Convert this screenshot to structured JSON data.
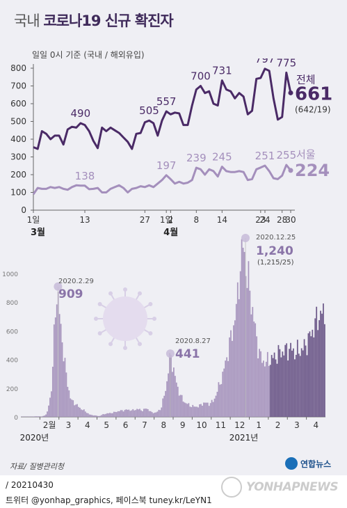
{
  "header": {
    "title_pre": "국내",
    "title_main": "코로나19 신규 확진자"
  },
  "top_chart_note": "일일 0시 기준 (국내 / 해외유입)",
  "source": "자료/ 질병관리청",
  "logo": {
    "text": "연합뉴스"
  },
  "footer": {
    "date": "/ 20210430",
    "social": "트위터 @yonhap_graphics, 페이스북 tuney.kr/LeYN1"
  },
  "watermark": "YONHAPNEWS",
  "colors": {
    "total": "#4a2a66",
    "seoul": "#a48fbc",
    "bar": "#a896be",
    "bar_recent": "#6e5a8a",
    "bg": "#efeff4"
  },
  "chart_data": [
    {
      "type": "line",
      "title": "",
      "ylim": [
        0,
        800
      ],
      "yticks": [
        0,
        100,
        200,
        300,
        400,
        500,
        600,
        700,
        800
      ],
      "x": [
        1,
        2,
        3,
        4,
        5,
        6,
        7,
        8,
        9,
        10,
        11,
        12,
        13,
        14,
        15,
        16,
        17,
        18,
        19,
        20,
        21,
        22,
        23,
        24,
        25,
        26,
        27,
        28,
        29,
        30,
        31,
        32,
        33,
        34,
        35,
        36,
        37,
        38,
        39,
        40,
        41,
        42,
        43,
        44,
        45,
        46,
        47,
        48,
        49,
        50,
        51,
        52,
        53,
        54,
        55,
        56,
        57,
        58,
        59,
        60,
        61
      ],
      "xtick_labels": [
        {
          "x": 1,
          "label": "1일"
        },
        {
          "x": 13,
          "label": "13"
        },
        {
          "x": 27,
          "label": "27"
        },
        {
          "x": 32,
          "label": "1일"
        },
        {
          "x": 33,
          "label": "2"
        },
        {
          "x": 39,
          "label": "8"
        },
        {
          "x": 45,
          "label": "14"
        },
        {
          "x": 54,
          "label": "23"
        },
        {
          "x": 55,
          "label": "24"
        },
        {
          "x": 59,
          "label": "28"
        },
        {
          "x": 61,
          "label": "30"
        }
      ],
      "month_labels": [
        {
          "x": 1,
          "label": "3월"
        },
        {
          "x": 32,
          "label": "4월"
        }
      ],
      "series": [
        {
          "name": "전체",
          "values": [
            355,
            345,
            445,
            430,
            400,
            420,
            420,
            370,
            455,
            470,
            465,
            490,
            480,
            445,
            390,
            350,
            465,
            445,
            465,
            450,
            435,
            410,
            385,
            345,
            430,
            435,
            495,
            505,
            490,
            420,
            505,
            557,
            540,
            550,
            545,
            480,
            480,
            590,
            680,
            700,
            660,
            670,
            600,
            590,
            731,
            680,
            670,
            630,
            660,
            640,
            540,
            560,
            740,
            745,
            797,
            785,
            630,
            510,
            525,
            775,
            661
          ],
          "labels": [
            {
              "x": 12,
              "text": "490"
            },
            {
              "x": 28,
              "text": "505"
            },
            {
              "x": 32,
              "text": "557"
            },
            {
              "x": 40,
              "text": "700"
            },
            {
              "x": 45,
              "text": "731"
            },
            {
              "x": 55,
              "text": "797"
            },
            {
              "x": 60,
              "text": "775"
            }
          ],
          "end_value": "661",
          "end_detail": "(642/19)"
        },
        {
          "name": "서울",
          "values": [
            90,
            125,
            120,
            120,
            130,
            125,
            130,
            120,
            115,
            130,
            140,
            138,
            138,
            118,
            120,
            125,
            100,
            100,
            120,
            130,
            140,
            125,
            100,
            120,
            125,
            135,
            130,
            140,
            130,
            150,
            170,
            197,
            175,
            150,
            160,
            150,
            155,
            170,
            239,
            230,
            200,
            230,
            220,
            190,
            245,
            220,
            215,
            215,
            220,
            215,
            170,
            175,
            230,
            240,
            251,
            220,
            180,
            175,
            195,
            255,
            224
          ],
          "labels": [
            {
              "x": 13,
              "text": "138"
            },
            {
              "x": 32,
              "text": "197"
            },
            {
              "x": 39,
              "text": "239"
            },
            {
              "x": 45,
              "text": "245"
            },
            {
              "x": 55,
              "text": "251"
            },
            {
              "x": 60,
              "text": "255"
            }
          ],
          "end_value": "224"
        }
      ]
    },
    {
      "type": "bar",
      "ylim": [
        0,
        1000
      ],
      "yticks": [
        0,
        200,
        400,
        600,
        800,
        1000
      ],
      "month_labels": [
        "2월",
        "3",
        "4",
        "5",
        "6",
        "7",
        "8",
        "9",
        "10",
        "11",
        "12",
        "1",
        "2",
        "3",
        "4"
      ],
      "year_labels": [
        {
          "month_index": 0,
          "text": "2020년"
        },
        {
          "month_index": 11,
          "text": "2021년"
        }
      ],
      "monthly_profile": [
        {
          "month": "2020-01",
          "values": [
            0,
            0,
            2,
            4
          ]
        },
        {
          "month": "2020-02",
          "values": [
            2,
            20,
            200,
            909
          ]
        },
        {
          "month": "2020-03",
          "values": [
            600,
            300,
            120,
            90
          ]
        },
        {
          "month": "2020-04",
          "values": [
            60,
            40,
            15,
            10
          ]
        },
        {
          "month": "2020-05",
          "values": [
            5,
            20,
            25,
            30
          ]
        },
        {
          "month": "2020-06",
          "values": [
            40,
            45,
            50,
            45
          ]
        },
        {
          "month": "2020-07",
          "values": [
            55,
            45,
            60,
            30
          ]
        },
        {
          "month": "2020-08",
          "values": [
            30,
            60,
            200,
            441
          ]
        },
        {
          "month": "2020-09",
          "values": [
            260,
            150,
            100,
            80
          ]
        },
        {
          "month": "2020-10",
          "values": [
            70,
            75,
            100,
            90
          ]
        },
        {
          "month": "2020-11",
          "values": [
            110,
            200,
            300,
            450
          ]
        },
        {
          "month": "2020-12",
          "values": [
            600,
            800,
            1240,
            1000
          ]
        },
        {
          "month": "2021-01",
          "values": [
            800,
            550,
            400,
            380
          ]
        },
        {
          "month": "2021-02",
          "values": [
            400,
            420,
            450,
            460
          ]
        },
        {
          "month": "2021-03",
          "values": [
            480,
            450,
            460,
            480
          ]
        },
        {
          "month": "2021-04",
          "values": [
            540,
            620,
            700,
            720
          ]
        }
      ],
      "annotations": [
        {
          "date": "2020.2.29",
          "value": "909"
        },
        {
          "date": "2020.8.27",
          "value": "441"
        },
        {
          "date": "2020.12.25",
          "value": "1,240",
          "detail": "(1,215/25)"
        }
      ]
    }
  ]
}
